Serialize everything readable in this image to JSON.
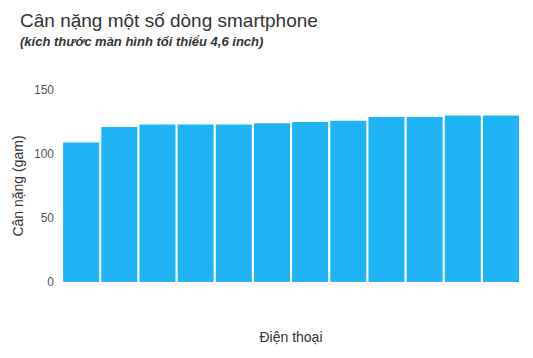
{
  "chart_data": {
    "type": "bar",
    "title": "Cân nặng một số dòng smartphone",
    "subtitle": "(kích thước màn hình tối thiểu 4,6 inch)",
    "x_label": "Điện thoại",
    "y_label": "Cân nặng (gam)",
    "categories": [
      null,
      null,
      null,
      null,
      null,
      null,
      null,
      null,
      null,
      null,
      null,
      null
    ],
    "values": [
      109,
      121,
      123,
      123,
      123,
      124,
      125,
      126,
      129,
      129,
      130,
      130
    ],
    "color": "#1eb4f5",
    "ylim": [
      0,
      150
    ],
    "yticks": [
      0,
      50,
      100,
      150
    ],
    "grid": false,
    "tick_labels": "y"
  }
}
